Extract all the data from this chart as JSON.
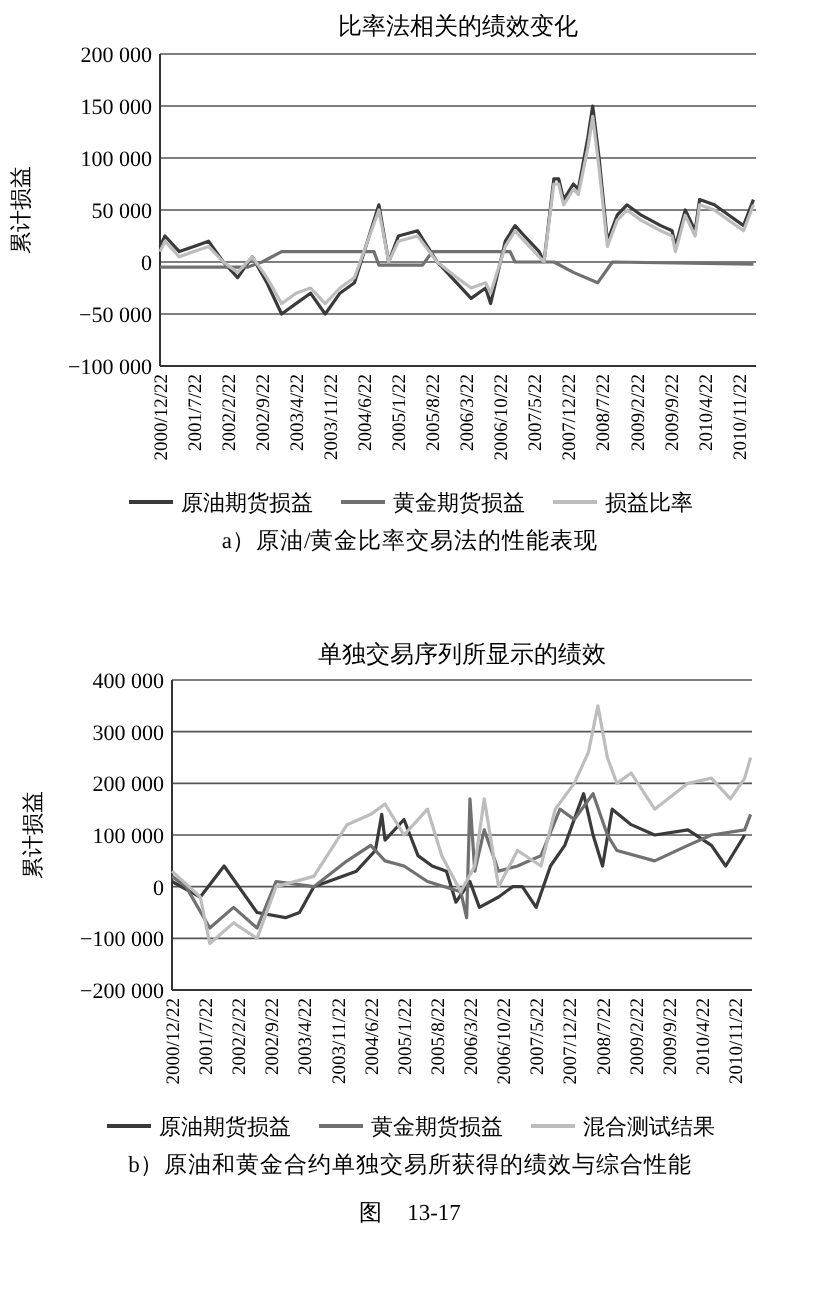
{
  "chart_data": [
    {
      "type": "line",
      "title": "比率法相关的绩效变化",
      "ylabel": "累计损益",
      "legend": "bottom",
      "grid": "y",
      "marker": "none",
      "line_style": "solid",
      "xlim": [
        "2000-12-22",
        "2011-03-10"
      ],
      "xticks": [
        {
          "value": "2000-12-22",
          "label": "2000/12/22"
        },
        {
          "value": "2001-07-22",
          "label": "2001/7/22"
        },
        {
          "value": "2002-02-22",
          "label": "2002/2/22"
        },
        {
          "value": "2002-09-22",
          "label": "2002/9/22"
        },
        {
          "value": "2003-04-22",
          "label": "2003/4/22"
        },
        {
          "value": "2003-11-22",
          "label": "2003/11/22"
        },
        {
          "value": "2004-06-22",
          "label": "2004/6/22"
        },
        {
          "value": "2005-01-22",
          "label": "2005/1/22"
        },
        {
          "value": "2005-08-22",
          "label": "2005/8/22"
        },
        {
          "value": "2006-03-22",
          "label": "2006/3/22"
        },
        {
          "value": "2006-10-22",
          "label": "2006/10/22"
        },
        {
          "value": "2007-05-22",
          "label": "2007/5/22"
        },
        {
          "value": "2007-12-22",
          "label": "2007/12/22"
        },
        {
          "value": "2008-07-22",
          "label": "2008/7/22"
        },
        {
          "value": "2009-02-22",
          "label": "2009/2/22"
        },
        {
          "value": "2009-09-22",
          "label": "2009/9/22"
        },
        {
          "value": "2010-04-22",
          "label": "2010/4/22"
        },
        {
          "value": "2010-11-22",
          "label": "2010/11/22"
        }
      ],
      "ylim": [
        -100000,
        200000
      ],
      "yticks": [
        {
          "value": -100000,
          "label": "−100 000"
        },
        {
          "value": -50000,
          "label": "−50 000"
        },
        0,
        {
          "value": 50000,
          "label": "50 000"
        },
        {
          "value": 100000,
          "label": "100 000"
        },
        {
          "value": 150000,
          "label": "150 000"
        },
        {
          "value": 200000,
          "label": "200 000"
        }
      ],
      "annotations": [
        "a）原油/黄金比率交易法的性能表现"
      ],
      "series": [
        {
          "name": "原油期货损益",
          "color": "#3a3a3a",
          "x": [
            "2000-12-22",
            "2001-01-22",
            "2001-04-22",
            "2001-07-22",
            "2001-10-22",
            "2002-01-22",
            "2002-04-22",
            "2002-07-22",
            "2002-10-22",
            "2003-01-22",
            "2003-04-22",
            "2003-07-22",
            "2003-10-22",
            "2004-01-22",
            "2004-04-22",
            "2004-09-22",
            "2004-11-22",
            "2005-01-22",
            "2005-05-22",
            "2005-09-22",
            "2006-01-22",
            "2006-04-22",
            "2006-07-22",
            "2006-08-22",
            "2006-11-22",
            "2007-01-22",
            "2007-03-22",
            "2007-06-22",
            "2007-07-22",
            "2007-09-22",
            "2007-10-22",
            "2007-11-22",
            "2008-01-22",
            "2008-02-22",
            "2008-04-22",
            "2008-05-22",
            "2008-07-01",
            "2008-08-22",
            "2008-10-22",
            "2008-12-22",
            "2009-03-22",
            "2009-07-22",
            "2009-10-01",
            "2009-10-22",
            "2009-12-22",
            "2010-02-22",
            "2010-03-22",
            "2010-06-22",
            "2010-09-22",
            "2010-12-22",
            "2011-02-22"
          ],
          "values": [
            15000,
            25000,
            10000,
            15000,
            20000,
            0,
            -15000,
            5000,
            -20000,
            -50000,
            -40000,
            -30000,
            -50000,
            -30000,
            -20000,
            55000,
            0,
            25000,
            30000,
            0,
            -20000,
            -35000,
            -25000,
            -40000,
            20000,
            35000,
            25000,
            10000,
            0,
            80000,
            80000,
            60000,
            75000,
            70000,
            120000,
            150000,
            100000,
            20000,
            45000,
            55000,
            45000,
            35000,
            30000,
            15000,
            50000,
            30000,
            60000,
            55000,
            45000,
            35000,
            60000
          ]
        },
        {
          "name": "黄金期货损益",
          "color": "#707070",
          "x": [
            "2000-12-22",
            "2002-06-22",
            "2002-09-22",
            "2003-01-22",
            "2004-08-22",
            "2004-09-22",
            "2005-06-22",
            "2005-08-22",
            "2006-12-22",
            "2007-01-22",
            "2007-09-22",
            "2008-01-22",
            "2008-06-22",
            "2008-09-22",
            "2011-02-22"
          ],
          "values": [
            -5000,
            -5000,
            0,
            10000,
            10000,
            -3000,
            -3000,
            10000,
            10000,
            0,
            0,
            -10000,
            -20000,
            0,
            -2000
          ]
        },
        {
          "name": "损益比率",
          "color": "#bdbdbd",
          "x": [
            "2000-12-22",
            "2001-01-22",
            "2001-04-22",
            "2001-07-22",
            "2001-10-22",
            "2002-01-22",
            "2002-04-22",
            "2002-07-22",
            "2002-10-22",
            "2003-01-22",
            "2003-04-22",
            "2003-07-22",
            "2003-10-22",
            "2004-01-22",
            "2004-04-22",
            "2004-09-22",
            "2004-11-22",
            "2005-01-22",
            "2005-05-22",
            "2005-09-22",
            "2006-01-22",
            "2006-04-22",
            "2006-07-22",
            "2006-08-22",
            "2006-11-22",
            "2007-01-22",
            "2007-03-22",
            "2007-06-22",
            "2007-07-22",
            "2007-09-22",
            "2007-10-22",
            "2007-11-22",
            "2008-01-22",
            "2008-02-22",
            "2008-04-22",
            "2008-05-22",
            "2008-07-01",
            "2008-08-22",
            "2008-10-22",
            "2008-12-22",
            "2009-03-22",
            "2009-07-22",
            "2009-10-01",
            "2009-10-22",
            "2009-12-22",
            "2010-02-22",
            "2010-03-22",
            "2010-06-22",
            "2010-09-22",
            "2010-12-22",
            "2011-02-22"
          ],
          "values": [
            10000,
            20000,
            5000,
            10000,
            15000,
            0,
            -10000,
            5000,
            -15000,
            -40000,
            -30000,
            -25000,
            -40000,
            -25000,
            -15000,
            50000,
            0,
            20000,
            25000,
            0,
            -15000,
            -25000,
            -20000,
            -30000,
            15000,
            30000,
            20000,
            5000,
            0,
            75000,
            75000,
            55000,
            70000,
            65000,
            110000,
            140000,
            90000,
            15000,
            40000,
            50000,
            40000,
            30000,
            25000,
            10000,
            45000,
            25000,
            55000,
            50000,
            40000,
            30000,
            55000
          ]
        }
      ]
    },
    {
      "type": "line",
      "title": "单独交易序列所显示的绩效",
      "ylabel": "累计损益",
      "legend": "bottom",
      "grid": "y",
      "marker": "none",
      "line_style": "solid",
      "xlim": [
        "2000-12-22",
        "2011-03-10"
      ],
      "xticks": [
        {
          "value": "2000-12-22",
          "label": "2000/12/22"
        },
        {
          "value": "2001-07-22",
          "label": "2001/7/22"
        },
        {
          "value": "2002-02-22",
          "label": "2002/2/22"
        },
        {
          "value": "2002-09-22",
          "label": "2002/9/22"
        },
        {
          "value": "2003-04-22",
          "label": "2003/4/22"
        },
        {
          "value": "2003-11-22",
          "label": "2003/11/22"
        },
        {
          "value": "2004-06-22",
          "label": "2004/6/22"
        },
        {
          "value": "2005-01-22",
          "label": "2005/1/22"
        },
        {
          "value": "2005-08-22",
          "label": "2005/8/22"
        },
        {
          "value": "2006-03-22",
          "label": "2006/3/22"
        },
        {
          "value": "2006-10-22",
          "label": "2006/10/22"
        },
        {
          "value": "2007-05-22",
          "label": "2007/5/22"
        },
        {
          "value": "2007-12-22",
          "label": "2007/12/22"
        },
        {
          "value": "2008-07-22",
          "label": "2008/7/22"
        },
        {
          "value": "2009-02-22",
          "label": "2009/2/22"
        },
        {
          "value": "2009-09-22",
          "label": "2009/9/22"
        },
        {
          "value": "2010-04-22",
          "label": "2010/4/22"
        },
        {
          "value": "2010-11-22",
          "label": "2010/11/22"
        }
      ],
      "ylim": [
        -200000,
        400000
      ],
      "yticks": [
        {
          "value": -200000,
          "label": "−200 000"
        },
        {
          "value": -100000,
          "label": "−100 000"
        },
        0,
        {
          "value": 100000,
          "label": "100 000"
        },
        {
          "value": 200000,
          "label": "200 000"
        },
        {
          "value": 300000,
          "label": "300 000"
        },
        {
          "value": 400000,
          "label": "400 000"
        }
      ],
      "annotations": [
        "b）原油和黄金合约单独交易所获得的绩效与综合性能",
        "图　13-17"
      ],
      "series": [
        {
          "name": "原油期货损益",
          "color": "#3a3a3a",
          "x": [
            "2000-12-22",
            "2001-06-22",
            "2001-11-22",
            "2002-06-22",
            "2002-12-22",
            "2003-03-22",
            "2003-06-22",
            "2004-03-22",
            "2004-07-22",
            "2004-09-01",
            "2004-09-22",
            "2005-01-22",
            "2005-04-22",
            "2005-07-22",
            "2005-10-22",
            "2005-12-22",
            "2006-03-22",
            "2006-05-22",
            "2006-09-22",
            "2006-12-22",
            "2007-02-22",
            "2007-05-22",
            "2007-08-22",
            "2007-11-22",
            "2008-03-22",
            "2008-05-22",
            "2008-07-22",
            "2008-09-22",
            "2009-01-22",
            "2009-06-22",
            "2010-01-22",
            "2010-06-22",
            "2010-09-22",
            "2011-01-22"
          ],
          "values": [
            10000,
            -20000,
            40000,
            -50000,
            -60000,
            -50000,
            0,
            30000,
            70000,
            140000,
            90000,
            130000,
            60000,
            40000,
            30000,
            -30000,
            10000,
            -40000,
            -20000,
            0,
            0,
            -40000,
            40000,
            80000,
            180000,
            100000,
            40000,
            150000,
            120000,
            100000,
            110000,
            80000,
            40000,
            100000
          ]
        },
        {
          "name": "黄金期货损益",
          "color": "#707070",
          "x": [
            "2000-12-22",
            "2001-03-22",
            "2001-08-22",
            "2002-01-22",
            "2002-06-22",
            "2002-10-22",
            "2003-06-22",
            "2004-01-22",
            "2004-06-22",
            "2004-09-22",
            "2005-01-22",
            "2005-06-22",
            "2006-01-22",
            "2006-03-01",
            "2006-03-22",
            "2006-04-22",
            "2006-06-22",
            "2006-09-22",
            "2007-01-22",
            "2007-06-22",
            "2007-10-22",
            "2008-01-22",
            "2008-05-22",
            "2008-08-22",
            "2008-10-22",
            "2009-06-22",
            "2010-01-22",
            "2010-06-22",
            "2011-01-22",
            "2011-03-01"
          ],
          "values": [
            20000,
            0,
            -80000,
            -40000,
            -80000,
            10000,
            0,
            50000,
            80000,
            50000,
            40000,
            10000,
            -10000,
            -60000,
            170000,
            30000,
            110000,
            30000,
            40000,
            60000,
            150000,
            130000,
            180000,
            100000,
            70000,
            50000,
            80000,
            100000,
            110000,
            140000
          ]
        },
        {
          "name": "混合测试结果",
          "color": "#bdbdbd",
          "x": [
            "2000-12-22",
            "2001-06-22",
            "2001-08-22",
            "2002-01-22",
            "2002-06-22",
            "2002-10-22",
            "2003-06-22",
            "2004-01-22",
            "2004-06-22",
            "2004-09-22",
            "2005-01-22",
            "2005-06-22",
            "2005-09-22",
            "2006-01-22",
            "2006-04-22",
            "2006-06-22",
            "2006-09-22",
            "2007-01-22",
            "2007-06-22",
            "2007-09-22",
            "2008-01-22",
            "2008-04-22",
            "2008-06-22",
            "2008-08-22",
            "2008-10-22",
            "2009-01-22",
            "2009-06-22",
            "2010-01-22",
            "2010-06-22",
            "2010-10-22",
            "2011-01-22",
            "2011-03-01"
          ],
          "values": [
            30000,
            -20000,
            -110000,
            -70000,
            -100000,
            0,
            20000,
            120000,
            140000,
            160000,
            100000,
            150000,
            60000,
            -10000,
            40000,
            170000,
            0,
            70000,
            40000,
            150000,
            200000,
            260000,
            350000,
            250000,
            200000,
            220000,
            150000,
            200000,
            210000,
            170000,
            210000,
            250000
          ]
        }
      ]
    }
  ]
}
